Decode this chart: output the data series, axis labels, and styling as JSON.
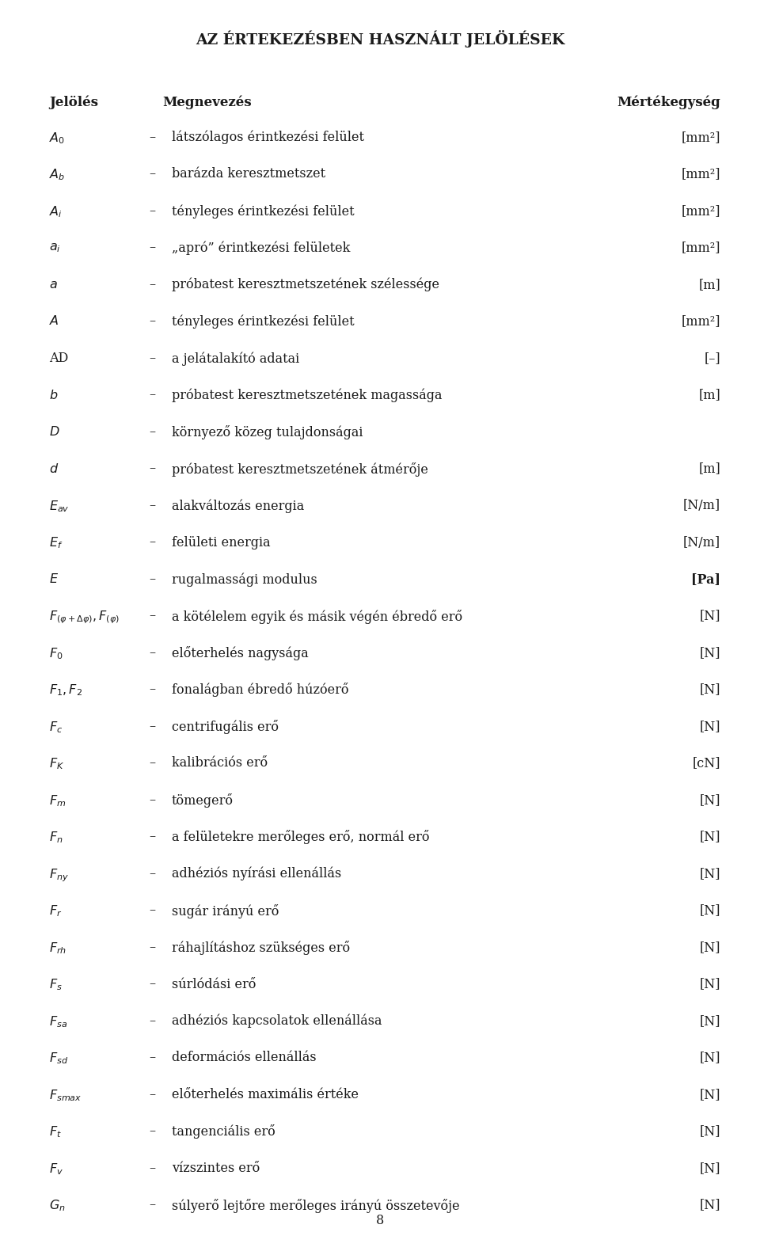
{
  "title": "AZ ÉRTEKEZÉSBEN HASZNÁLT JELÖLÉSEK",
  "header": [
    "Jelölés",
    "Megnevezés",
    "Mértékegység"
  ],
  "rows": [
    {
      "symbol": "$A_0$",
      "dash": true,
      "description": "látszólagos érintkezési felület",
      "unit": "[mm²]"
    },
    {
      "symbol": "$A_b$",
      "dash": true,
      "description": "barázda keresztmetszet",
      "unit": "[mm²]"
    },
    {
      "symbol": "$A_i$",
      "dash": true,
      "description": "tényleges érintkezési felület",
      "unit": "[mm²]"
    },
    {
      "symbol": "$a_i$",
      "dash": true,
      "description": "„apró” érintkezési felületek",
      "unit": "[mm²]"
    },
    {
      "symbol": "$a$",
      "dash": true,
      "description": "próbatest keresztmetszetének szélessége",
      "unit": "[m]"
    },
    {
      "symbol": "$A$",
      "dash": true,
      "description": "tényleges érintkezési felület",
      "unit": "[mm²]"
    },
    {
      "symbol": "AD",
      "dash": true,
      "description": "a jelátalakító adatai",
      "unit": "[–]"
    },
    {
      "symbol": "$b$",
      "dash": true,
      "description": "próbatest keresztmetszetének magassága",
      "unit": "[m]"
    },
    {
      "symbol": "$D$",
      "dash": true,
      "description": "környező közeg tulajdonságai",
      "unit": ""
    },
    {
      "symbol": "$d$",
      "dash": true,
      "description": "próbatest keresztmetszetének átmérője",
      "unit": "[m]"
    },
    {
      "symbol": "$E_{av}$",
      "dash": true,
      "description": "alakváltozás energia",
      "unit": "[N/m]"
    },
    {
      "symbol": "$E_f$",
      "dash": true,
      "description": "felületi energia",
      "unit": "[N/m]"
    },
    {
      "symbol": "$E$",
      "dash": true,
      "description": "rugalmassági modulus",
      "unit": "[Pa]",
      "unit_bold": true
    },
    {
      "symbol": "$F_{(\\varphi+\\Delta\\varphi)},F_{(\\varphi)}$",
      "dash": true,
      "description": "a kötélelem egyik és másik végén ébredő erő",
      "unit": "[N]"
    },
    {
      "symbol": "$F_0$",
      "dash": true,
      "description": "előterhelés nagysága",
      "unit": "[N]"
    },
    {
      "symbol": "$F_1,F_2$",
      "dash": true,
      "description": "fonalágban ébredő húzóerő",
      "unit": "[N]"
    },
    {
      "symbol": "$F_c$",
      "dash": true,
      "description": "centrifugális erő",
      "unit": "[N]"
    },
    {
      "symbol": "$F_K$",
      "dash": true,
      "description": "kalibrációs erő",
      "unit": "[cN]"
    },
    {
      "symbol": "$F_m$",
      "dash": true,
      "description": "tömegerő",
      "unit": "[N]"
    },
    {
      "symbol": "$F_n$",
      "dash": true,
      "description": "a felületekre merőleges erő, normál erő",
      "unit": "[N]"
    },
    {
      "symbol": "$F_{ny}$",
      "dash": true,
      "description": "adhéziós nyírási ellenállás",
      "unit": "[N]"
    },
    {
      "symbol": "$F_r$",
      "dash": true,
      "description": "sugár irányú erő",
      "unit": "[N]"
    },
    {
      "symbol": "$F_{rh}$",
      "dash": true,
      "description": "ráhajlításhoz szükséges erő",
      "unit": "[N]"
    },
    {
      "symbol": "$F_s$",
      "dash": true,
      "description": "súrlódási erő",
      "unit": "[N]"
    },
    {
      "symbol": "$F_{sa}$",
      "dash": true,
      "description": "adhéziós kapcsolatok ellenállása",
      "unit": "[N]"
    },
    {
      "symbol": "$F_{sd}$",
      "dash": true,
      "description": "deformációs ellenállás",
      "unit": "[N]"
    },
    {
      "symbol": "$F_{smax}$",
      "dash": true,
      "description": "előterhelés maximális értéke",
      "unit": "[N]"
    },
    {
      "symbol": "$F_t$",
      "dash": true,
      "description": "tangenciális erő",
      "unit": "[N]"
    },
    {
      "symbol": "$F_v$",
      "dash": true,
      "description": "vízszintes erő",
      "unit": "[N]"
    },
    {
      "symbol": "$G_n$",
      "dash": true,
      "description": "súlyerő lejtőre merőleges irányú összetevője",
      "unit": "[N]"
    }
  ],
  "page_number": "8",
  "bg_color": "#ffffff",
  "text_color": "#1a1a1a",
  "title_fontsize": 13.5,
  "header_fontsize": 12,
  "body_fontsize": 11.5,
  "fig_width": 9.6,
  "fig_height": 15.61,
  "dpi": 100
}
